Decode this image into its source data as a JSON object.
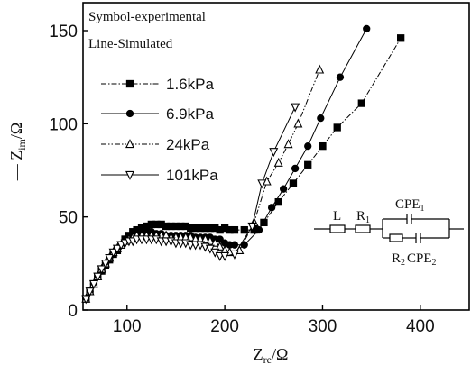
{
  "chart_data": {
    "type": "scatter",
    "xlabel": "Z",
    "xlabel_sub": "re",
    "xlabel_unit": "/Ω",
    "ylabel": "— Z",
    "ylabel_sub": "im",
    "ylabel_unit": "/Ω",
    "xlim": [
      55,
      450
    ],
    "ylim": [
      0,
      165
    ],
    "xticks": [
      100,
      200,
      300,
      400
    ],
    "yticks": [
      0,
      50,
      100,
      150
    ],
    "legend_note": [
      "Symbol-experimental",
      "Line-Simulated"
    ],
    "legend_position": "top-left",
    "series": [
      {
        "name": "1.6kPa",
        "marker": "square",
        "line": "dash-dot",
        "points": [
          [
            58,
            6
          ],
          [
            62,
            10
          ],
          [
            66,
            14
          ],
          [
            70,
            18
          ],
          [
            74,
            21
          ],
          [
            78,
            24
          ],
          [
            82,
            27
          ],
          [
            86,
            30
          ],
          [
            90,
            32
          ],
          [
            94,
            35
          ],
          [
            98,
            38
          ],
          [
            102,
            40
          ],
          [
            106,
            42
          ],
          [
            110,
            43
          ],
          [
            115,
            44
          ],
          [
            120,
            45
          ],
          [
            125,
            46
          ],
          [
            130,
            46
          ],
          [
            135,
            46
          ],
          [
            140,
            45
          ],
          [
            145,
            45
          ],
          [
            150,
            45
          ],
          [
            155,
            45
          ],
          [
            160,
            45
          ],
          [
            165,
            44
          ],
          [
            170,
            44
          ],
          [
            175,
            44
          ],
          [
            180,
            44
          ],
          [
            185,
            44
          ],
          [
            190,
            44
          ],
          [
            195,
            43
          ],
          [
            200,
            44
          ],
          [
            205,
            43
          ],
          [
            210,
            43
          ],
          [
            220,
            43
          ],
          [
            230,
            43
          ],
          [
            240,
            47
          ],
          [
            255,
            58
          ],
          [
            270,
            68
          ],
          [
            285,
            78
          ],
          [
            300,
            88
          ],
          [
            315,
            98
          ],
          [
            340,
            111
          ],
          [
            380,
            146
          ]
        ]
      },
      {
        "name": "6.9kPa",
        "marker": "circle",
        "line": "solid",
        "points": [
          [
            58,
            6
          ],
          [
            62,
            10
          ],
          [
            66,
            14
          ],
          [
            70,
            18
          ],
          [
            74,
            21
          ],
          [
            78,
            24
          ],
          [
            82,
            27
          ],
          [
            86,
            30
          ],
          [
            90,
            33
          ],
          [
            94,
            35
          ],
          [
            98,
            37
          ],
          [
            102,
            39
          ],
          [
            106,
            40
          ],
          [
            110,
            41
          ],
          [
            115,
            42
          ],
          [
            120,
            42
          ],
          [
            125,
            42
          ],
          [
            130,
            41
          ],
          [
            135,
            41
          ],
          [
            140,
            40
          ],
          [
            145,
            40
          ],
          [
            150,
            40
          ],
          [
            155,
            40
          ],
          [
            160,
            40
          ],
          [
            165,
            40
          ],
          [
            170,
            39
          ],
          [
            175,
            39
          ],
          [
            180,
            39
          ],
          [
            185,
            39
          ],
          [
            190,
            38
          ],
          [
            195,
            38
          ],
          [
            200,
            36
          ],
          [
            205,
            35
          ],
          [
            210,
            35
          ],
          [
            220,
            35
          ],
          [
            235,
            43
          ],
          [
            248,
            55
          ],
          [
            260,
            65
          ],
          [
            272,
            76
          ],
          [
            285,
            88
          ],
          [
            298,
            103
          ],
          [
            318,
            125
          ],
          [
            345,
            151
          ]
        ]
      },
      {
        "name": "24kPa",
        "marker": "triangle-up",
        "line": "dash-dot-dot",
        "points": [
          [
            58,
            6
          ],
          [
            62,
            10
          ],
          [
            66,
            14
          ],
          [
            70,
            18
          ],
          [
            74,
            22
          ],
          [
            78,
            25
          ],
          [
            82,
            28
          ],
          [
            86,
            31
          ],
          [
            90,
            33
          ],
          [
            94,
            35
          ],
          [
            98,
            37
          ],
          [
            102,
            38
          ],
          [
            106,
            39
          ],
          [
            110,
            40
          ],
          [
            115,
            40
          ],
          [
            120,
            40
          ],
          [
            125,
            40
          ],
          [
            130,
            40
          ],
          [
            135,
            40
          ],
          [
            140,
            40
          ],
          [
            145,
            39
          ],
          [
            150,
            39
          ],
          [
            155,
            39
          ],
          [
            160,
            39
          ],
          [
            165,
            39
          ],
          [
            170,
            38
          ],
          [
            175,
            38
          ],
          [
            180,
            38
          ],
          [
            185,
            37
          ],
          [
            190,
            36
          ],
          [
            195,
            34
          ],
          [
            200,
            32
          ],
          [
            205,
            31
          ],
          [
            215,
            32
          ],
          [
            230,
            47
          ],
          [
            243,
            69
          ],
          [
            255,
            79
          ],
          [
            265,
            89
          ],
          [
            275,
            100
          ],
          [
            297,
            129
          ]
        ]
      },
      {
        "name": "101kPa",
        "marker": "triangle-down",
        "line": "solid",
        "points": [
          [
            58,
            6
          ],
          [
            62,
            10
          ],
          [
            66,
            14
          ],
          [
            70,
            18
          ],
          [
            74,
            22
          ],
          [
            78,
            25
          ],
          [
            82,
            28
          ],
          [
            86,
            31
          ],
          [
            90,
            33
          ],
          [
            94,
            35
          ],
          [
            98,
            36
          ],
          [
            102,
            37
          ],
          [
            106,
            37
          ],
          [
            110,
            38
          ],
          [
            115,
            38
          ],
          [
            120,
            38
          ],
          [
            125,
            38
          ],
          [
            130,
            38
          ],
          [
            135,
            37
          ],
          [
            140,
            37
          ],
          [
            145,
            37
          ],
          [
            150,
            36
          ],
          [
            155,
            36
          ],
          [
            160,
            36
          ],
          [
            165,
            35
          ],
          [
            170,
            35
          ],
          [
            175,
            35
          ],
          [
            180,
            34
          ],
          [
            185,
            33
          ],
          [
            190,
            31
          ],
          [
            195,
            29
          ],
          [
            200,
            29
          ],
          [
            210,
            30
          ],
          [
            228,
            45
          ],
          [
            238,
            68
          ],
          [
            250,
            85
          ],
          [
            272,
            109
          ]
        ]
      }
    ]
  },
  "circuit": {
    "L": "L",
    "R1": "R",
    "R1_sub": "1",
    "CPE1": "CPE",
    "CPE1_sub": "1",
    "R2": "R",
    "R2_sub": "2",
    "CPE2": "CPE",
    "CPE2_sub": "2"
  }
}
